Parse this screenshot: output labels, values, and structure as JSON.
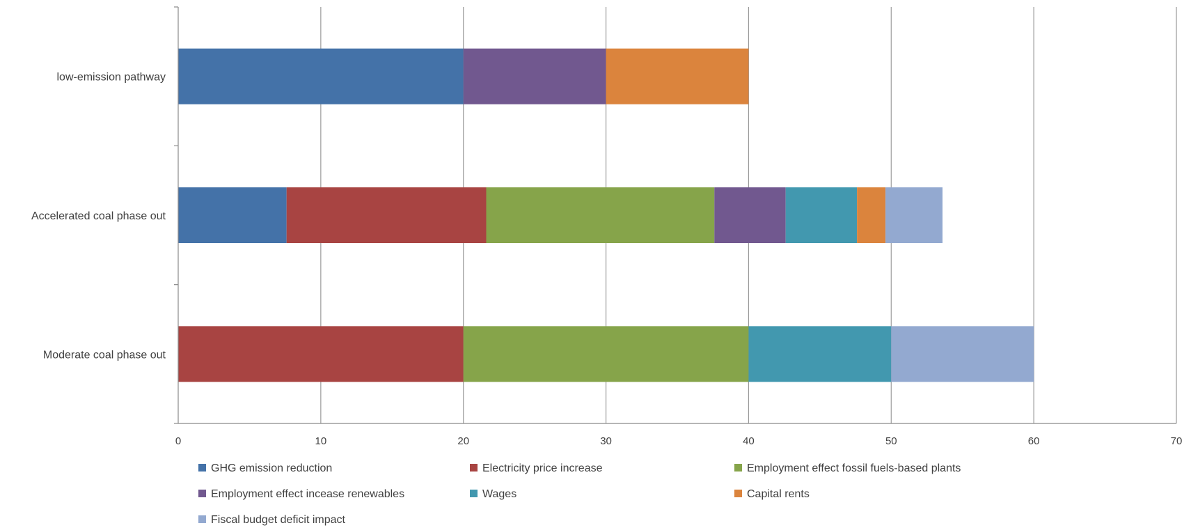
{
  "chart_data": {
    "type": "bar",
    "orientation": "horizontal",
    "stacked": true,
    "title": "",
    "xlabel": "",
    "ylabel": "",
    "xlim": [
      0,
      70
    ],
    "x_ticks": [
      0,
      10,
      20,
      30,
      40,
      50,
      60,
      70
    ],
    "grid": "vertical",
    "legend_position": "bottom",
    "categories": [
      "low-emission pathway",
      "Accelerated coal phase out",
      "Moderate coal phase out"
    ],
    "series": [
      {
        "name": "GHG emission reduction",
        "color": "#4472a8",
        "values": [
          20,
          7.6,
          0
        ]
      },
      {
        "name": "Electricity price increase",
        "color": "#a84442",
        "values": [
          0,
          14,
          20
        ]
      },
      {
        "name": "Employment effect fossil fuels-based plants",
        "color": "#86a44a",
        "values": [
          0,
          16,
          20
        ]
      },
      {
        "name": "Employment effect inceasе renewables",
        "color": "#71588f",
        "values": [
          10,
          5,
          0
        ]
      },
      {
        "name": "Wages",
        "color": "#4298af",
        "values": [
          0,
          5,
          10
        ]
      },
      {
        "name": "Capital rents",
        "color": "#db843d",
        "values": [
          10,
          2,
          0
        ]
      },
      {
        "name": "Fiscal budget deficit impact",
        "color": "#93a9d0",
        "values": [
          0,
          4,
          10
        ]
      }
    ]
  }
}
